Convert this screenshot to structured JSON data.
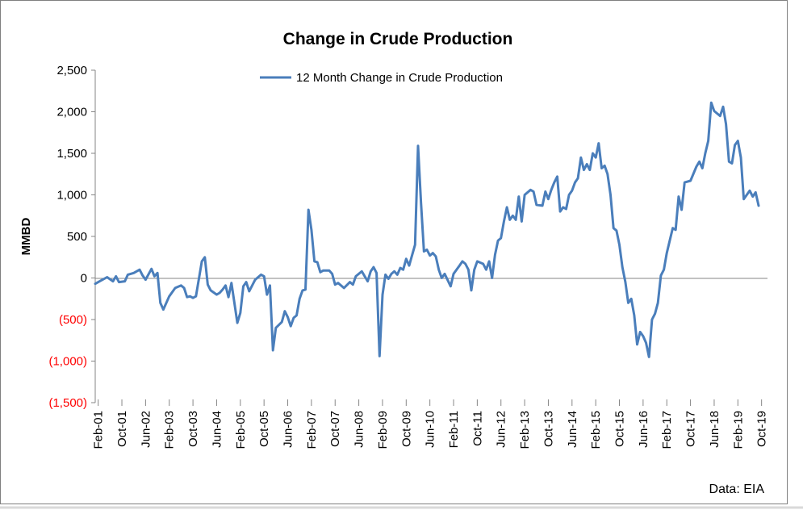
{
  "colors": {
    "line": "#4a7ebb",
    "negative_label": "#ff0000",
    "axis": "#868686",
    "border": "#7f7f7f"
  },
  "chart_data": {
    "type": "line",
    "title": "Change in Crude Production",
    "ylabel": "MMBD",
    "xlabel": "",
    "source": "Data: EIA",
    "legend": {
      "position": "top-center",
      "label": "12 Month Change in Crude Production"
    },
    "grid": false,
    "ylim": [
      -1500,
      2500
    ],
    "yticks": [
      2500,
      2000,
      1500,
      1000,
      500,
      0,
      -500,
      -1000,
      -1500
    ],
    "ytick_labels": [
      "2,500",
      "2,000",
      "1,500",
      "1,000",
      "500",
      "0",
      "(500)",
      "(1,000)",
      "(1,500)"
    ],
    "x_start": "2001-01",
    "x_end": "2019-12",
    "xtick_labels": [
      "Feb-01",
      "Oct-01",
      "Jun-02",
      "Feb-03",
      "Oct-03",
      "Jun-04",
      "Feb-05",
      "Oct-05",
      "Jun-06",
      "Feb-07",
      "Oct-07",
      "Jun-08",
      "Feb-09",
      "Oct-09",
      "Jun-10",
      "Feb-11",
      "Oct-11",
      "Jun-12",
      "Feb-13",
      "Oct-13",
      "Jun-14",
      "Feb-15",
      "Oct-15",
      "Jun-16",
      "Feb-17",
      "Oct-17",
      "Jun-18",
      "Feb-19",
      "Oct-19"
    ],
    "series": [
      {
        "name": "12 Month Change in Crude Production",
        "points": [
          [
            "2001-01",
            -70
          ],
          [
            "2001-03",
            -30
          ],
          [
            "2001-05",
            10
          ],
          [
            "2001-07",
            -40
          ],
          [
            "2001-08",
            20
          ],
          [
            "2001-09",
            -50
          ],
          [
            "2001-11",
            -40
          ],
          [
            "2001-12",
            40
          ],
          [
            "2002-02",
            60
          ],
          [
            "2002-04",
            100
          ],
          [
            "2002-05",
            30
          ],
          [
            "2002-06",
            -20
          ],
          [
            "2002-08",
            110
          ],
          [
            "2002-09",
            20
          ],
          [
            "2002-10",
            60
          ],
          [
            "2002-11",
            -300
          ],
          [
            "2002-12",
            -380
          ],
          [
            "2003-02",
            -220
          ],
          [
            "2003-04",
            -120
          ],
          [
            "2003-06",
            -90
          ],
          [
            "2003-07",
            -120
          ],
          [
            "2003-08",
            -230
          ],
          [
            "2003-09",
            -220
          ],
          [
            "2003-10",
            -240
          ],
          [
            "2003-11",
            -220
          ],
          [
            "2004-01",
            200
          ],
          [
            "2004-02",
            250
          ],
          [
            "2004-03",
            -80
          ],
          [
            "2004-04",
            -150
          ],
          [
            "2004-06",
            -200
          ],
          [
            "2004-07",
            -180
          ],
          [
            "2004-08",
            -140
          ],
          [
            "2004-09",
            -90
          ],
          [
            "2004-10",
            -230
          ],
          [
            "2004-11",
            -60
          ],
          [
            "2005-01",
            -540
          ],
          [
            "2005-02",
            -420
          ],
          [
            "2005-03",
            -100
          ],
          [
            "2005-04",
            -50
          ],
          [
            "2005-05",
            -160
          ],
          [
            "2005-07",
            -20
          ],
          [
            "2005-09",
            40
          ],
          [
            "2005-10",
            20
          ],
          [
            "2005-11",
            -200
          ],
          [
            "2005-12",
            -90
          ],
          [
            "2006-01",
            -870
          ],
          [
            "2006-02",
            -600
          ],
          [
            "2006-04",
            -530
          ],
          [
            "2006-05",
            -400
          ],
          [
            "2006-06",
            -470
          ],
          [
            "2006-07",
            -580
          ],
          [
            "2006-08",
            -480
          ],
          [
            "2006-09",
            -450
          ],
          [
            "2006-10",
            -250
          ],
          [
            "2006-11",
            -150
          ],
          [
            "2006-12",
            -140
          ],
          [
            "2007-01",
            820
          ],
          [
            "2007-02",
            580
          ],
          [
            "2007-03",
            200
          ],
          [
            "2007-04",
            190
          ],
          [
            "2007-05",
            70
          ],
          [
            "2007-06",
            90
          ],
          [
            "2007-08",
            90
          ],
          [
            "2007-09",
            50
          ],
          [
            "2007-10",
            -80
          ],
          [
            "2007-11",
            -60
          ],
          [
            "2008-01",
            -120
          ],
          [
            "2008-03",
            -50
          ],
          [
            "2008-04",
            -80
          ],
          [
            "2008-05",
            20
          ],
          [
            "2008-07",
            80
          ],
          [
            "2008-08",
            20
          ],
          [
            "2008-09",
            -40
          ],
          [
            "2008-10",
            80
          ],
          [
            "2008-11",
            130
          ],
          [
            "2008-12",
            60
          ],
          [
            "2009-01",
            -940
          ],
          [
            "2009-02",
            -200
          ],
          [
            "2009-03",
            40
          ],
          [
            "2009-04",
            -10
          ],
          [
            "2009-05",
            50
          ],
          [
            "2009-06",
            80
          ],
          [
            "2009-07",
            40
          ],
          [
            "2009-08",
            120
          ],
          [
            "2009-09",
            100
          ],
          [
            "2009-10",
            230
          ],
          [
            "2009-11",
            150
          ],
          [
            "2010-01",
            400
          ],
          [
            "2010-02",
            1590
          ],
          [
            "2010-03",
            900
          ],
          [
            "2010-04",
            320
          ],
          [
            "2010-05",
            340
          ],
          [
            "2010-06",
            270
          ],
          [
            "2010-07",
            300
          ],
          [
            "2010-08",
            260
          ],
          [
            "2010-09",
            100
          ],
          [
            "2010-10",
            0
          ],
          [
            "2010-11",
            50
          ],
          [
            "2011-01",
            -100
          ],
          [
            "2011-02",
            50
          ],
          [
            "2011-03",
            100
          ],
          [
            "2011-04",
            150
          ],
          [
            "2011-05",
            200
          ],
          [
            "2011-06",
            170
          ],
          [
            "2011-07",
            100
          ],
          [
            "2011-08",
            -150
          ],
          [
            "2011-09",
            100
          ],
          [
            "2011-10",
            200
          ],
          [
            "2011-12",
            170
          ],
          [
            "2012-01",
            100
          ],
          [
            "2012-02",
            200
          ],
          [
            "2012-03",
            0
          ],
          [
            "2012-04",
            280
          ],
          [
            "2012-05",
            450
          ],
          [
            "2012-06",
            480
          ],
          [
            "2012-07",
            680
          ],
          [
            "2012-08",
            850
          ],
          [
            "2012-09",
            700
          ],
          [
            "2012-10",
            750
          ],
          [
            "2012-11",
            700
          ],
          [
            "2012-12",
            980
          ],
          [
            "2013-01",
            680
          ],
          [
            "2013-02",
            1000
          ],
          [
            "2013-04",
            1060
          ],
          [
            "2013-05",
            1040
          ],
          [
            "2013-06",
            880
          ],
          [
            "2013-08",
            870
          ],
          [
            "2013-09",
            1040
          ],
          [
            "2013-10",
            950
          ],
          [
            "2013-11",
            1060
          ],
          [
            "2013-12",
            1150
          ],
          [
            "2014-01",
            1220
          ],
          [
            "2014-02",
            800
          ],
          [
            "2014-03",
            850
          ],
          [
            "2014-04",
            830
          ],
          [
            "2014-05",
            1000
          ],
          [
            "2014-06",
            1050
          ],
          [
            "2014-07",
            1150
          ],
          [
            "2014-08",
            1200
          ],
          [
            "2014-09",
            1450
          ],
          [
            "2014-10",
            1300
          ],
          [
            "2014-11",
            1370
          ],
          [
            "2014-12",
            1300
          ],
          [
            "2015-01",
            1500
          ],
          [
            "2015-02",
            1450
          ],
          [
            "2015-03",
            1620
          ],
          [
            "2015-04",
            1320
          ],
          [
            "2015-05",
            1350
          ],
          [
            "2015-06",
            1250
          ],
          [
            "2015-07",
            1000
          ],
          [
            "2015-08",
            600
          ],
          [
            "2015-09",
            570
          ],
          [
            "2015-10",
            400
          ],
          [
            "2015-11",
            130
          ],
          [
            "2015-12",
            -50
          ],
          [
            "2016-01",
            -300
          ],
          [
            "2016-02",
            -250
          ],
          [
            "2016-03",
            -450
          ],
          [
            "2016-04",
            -800
          ],
          [
            "2016-05",
            -650
          ],
          [
            "2016-06",
            -700
          ],
          [
            "2016-07",
            -780
          ],
          [
            "2016-08",
            -950
          ],
          [
            "2016-09",
            -500
          ],
          [
            "2016-10",
            -430
          ],
          [
            "2016-11",
            -300
          ],
          [
            "2016-12",
            30
          ],
          [
            "2017-01",
            100
          ],
          [
            "2017-02",
            300
          ],
          [
            "2017-03",
            450
          ],
          [
            "2017-04",
            600
          ],
          [
            "2017-05",
            580
          ],
          [
            "2017-06",
            980
          ],
          [
            "2017-07",
            820
          ],
          [
            "2017-08",
            1150
          ],
          [
            "2017-10",
            1170
          ],
          [
            "2017-12",
            1340
          ],
          [
            "2018-01",
            1400
          ],
          [
            "2018-02",
            1320
          ],
          [
            "2018-03",
            1500
          ],
          [
            "2018-04",
            1650
          ],
          [
            "2018-05",
            2110
          ],
          [
            "2018-06",
            2010
          ],
          [
            "2018-07",
            1980
          ],
          [
            "2018-08",
            1950
          ],
          [
            "2018-09",
            2060
          ],
          [
            "2018-10",
            1850
          ],
          [
            "2018-11",
            1400
          ],
          [
            "2018-12",
            1380
          ],
          [
            "2019-01",
            1600
          ],
          [
            "2019-02",
            1650
          ],
          [
            "2019-03",
            1450
          ],
          [
            "2019-04",
            950
          ],
          [
            "2019-05",
            1000
          ],
          [
            "2019-06",
            1050
          ],
          [
            "2019-07",
            980
          ],
          [
            "2019-08",
            1030
          ],
          [
            "2019-09",
            870
          ]
        ]
      }
    ]
  }
}
